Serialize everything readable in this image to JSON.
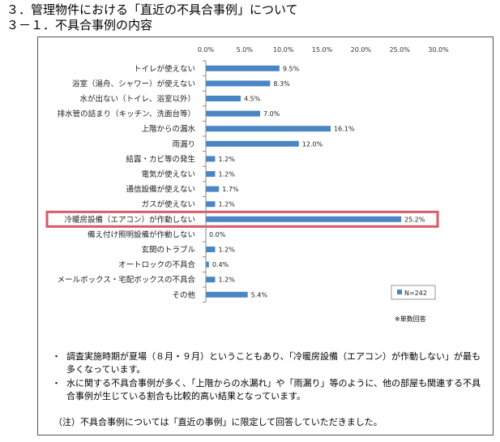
{
  "heading": {
    "line1": "３．管理物件における「直近の不具合事例」について",
    "line2": "３－１．不具合事例の内容"
  },
  "chart_data": {
    "type": "bar",
    "orientation": "horizontal",
    "categories": [
      "トイレが使えない",
      "浴室（湯舟、シャワー）が使えない",
      "水が出ない（トイレ、浴室以外）",
      "排水管の詰まり（キッチン、洗面台等）",
      "上階からの漏水",
      "雨漏り",
      "結露・カビ等の発生",
      "電気が使えない",
      "通信設備が使えない",
      "ガスが使えない",
      "冷暖房設備（エアコン）が作動しない",
      "備え付け照明設備が作動しない",
      "玄関のトラブル",
      "オートロックの不具合",
      "メールボックス・宅配ボックスの不具合",
      "その他"
    ],
    "values": [
      9.5,
      8.3,
      4.5,
      7.0,
      16.1,
      12.0,
      1.2,
      1.2,
      1.7,
      1.2,
      25.2,
      0.0,
      1.2,
      0.4,
      1.2,
      5.4
    ],
    "value_labels": [
      "9.5%",
      "8.3%",
      "4.5%",
      "7.0%",
      "16.1%",
      "12.0%",
      "1.2%",
      "1.2%",
      "1.7%",
      "1.2%",
      "25.2%",
      "0.0%",
      "1.2%",
      "0.4%",
      "1.2%",
      "5.4%"
    ],
    "xlim": [
      0,
      30
    ],
    "ticks": [
      "0.0%",
      "5.0%",
      "10.0%",
      "15.0%",
      "20.0%",
      "25.0%",
      "30.0%"
    ],
    "legend": "N=242",
    "legend_position": "bottom-right",
    "highlighted_category": "冷暖房設備（エアコン）が作動しない",
    "bar_color": "#4a86c5",
    "highlight_color": "#d85a6a",
    "grid": false
  },
  "note": "※単数回答",
  "bullets": [
    "調査実施時期が夏場（８月・９月）ということもあり、「冷暖房設備（エアコン）が作動しない」が最も多くなっています。",
    "水に関する不具合事例が多く、「上階からの水漏れ」や「雨漏り」等のように、他の部屋も関連する不具合事例が生じている割合も比較的高い結果となっています。"
  ],
  "bullet_marker": "・",
  "footnote": "（注）不具合事例については「直近の事例」に限定して回答していただきました。"
}
